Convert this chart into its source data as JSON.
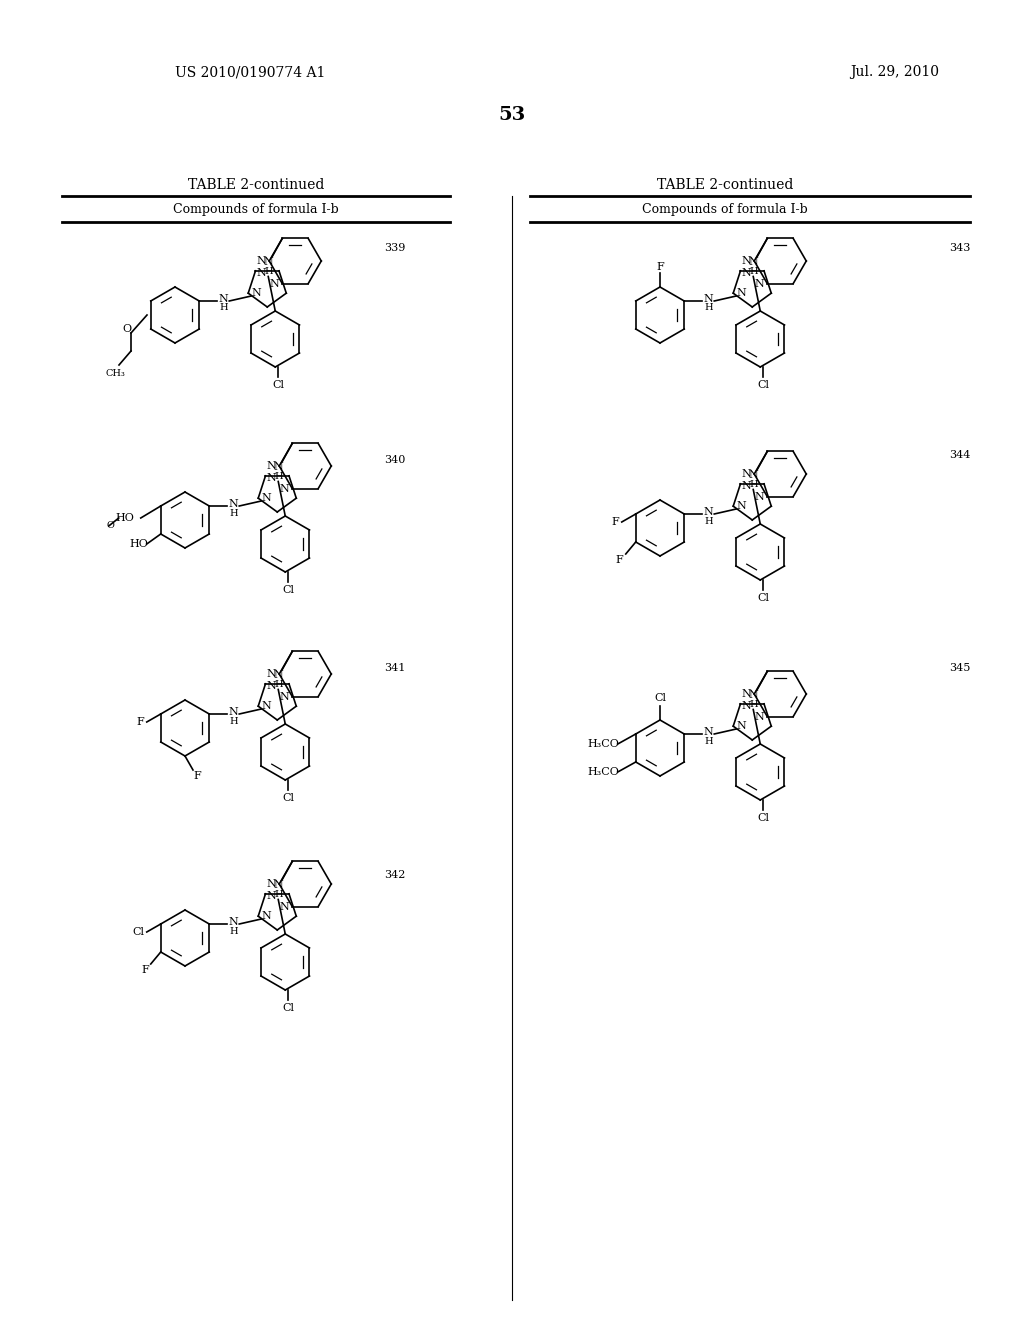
{
  "background_color": "#ffffff",
  "page_number": "53",
  "patent_number": "US 2010/0190774 A1",
  "patent_date": "Jul. 29, 2010",
  "table_title": "TABLE 2-continued",
  "table_subtitle": "Compounds of formula I-b",
  "compound_numbers_left": [
    "339",
    "340",
    "341",
    "342"
  ],
  "compound_numbers_right": [
    "343",
    "344",
    "345"
  ],
  "text_color": "#000000",
  "font_family": "serif"
}
